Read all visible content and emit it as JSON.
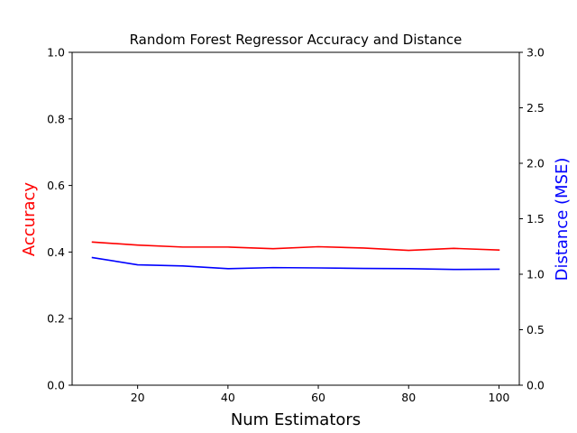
{
  "chart_data": {
    "type": "line",
    "title": "Random Forest Regressor Accuracy and Distance",
    "xlabel": "Num Estimators",
    "ylabel_left": "Accuracy",
    "ylabel_right": "Distance (MSE)",
    "xlim": [
      5.5,
      104.5
    ],
    "ylim_left": [
      0,
      1
    ],
    "ylim_right": [
      0,
      3
    ],
    "x_ticks": [
      "20",
      "40",
      "60",
      "80",
      "100"
    ],
    "y_left_ticks": [
      "0.0",
      "0.2",
      "0.4",
      "0.6",
      "0.8",
      "1.0"
    ],
    "y_right_ticks": [
      "0.0",
      "0.5",
      "1.0",
      "1.5",
      "2.0",
      "2.5",
      "3.0"
    ],
    "x": [
      10,
      20,
      30,
      40,
      50,
      60,
      70,
      80,
      90,
      100
    ],
    "series": [
      {
        "axis": "left",
        "color": "#ff0000",
        "values": [
          0.43,
          0.421,
          0.415,
          0.415,
          0.41,
          0.416,
          0.412,
          0.405,
          0.411,
          0.406
        ]
      },
      {
        "axis": "right",
        "color": "#0000ff",
        "values": [
          1.15,
          1.085,
          1.075,
          1.05,
          1.06,
          1.057,
          1.052,
          1.05,
          1.043,
          1.045
        ]
      }
    ],
    "grid": false,
    "legend": "none"
  }
}
